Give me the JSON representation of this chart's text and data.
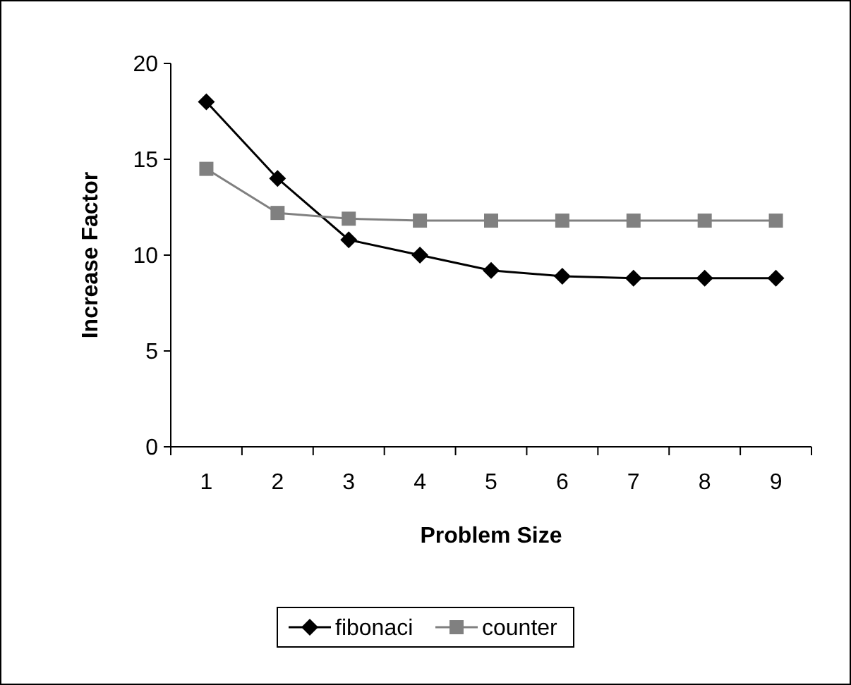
{
  "chart_data": {
    "type": "line",
    "xlabel": "Problem Size",
    "ylabel": "Increase Factor",
    "categories": [
      "1",
      "2",
      "3",
      "4",
      "5",
      "6",
      "7",
      "8",
      "9"
    ],
    "series": [
      {
        "name": "fibonaci",
        "color": "#000000",
        "marker": "diamond",
        "values": [
          18,
          14,
          10.8,
          10,
          9.2,
          8.9,
          8.8,
          8.8,
          8.8
        ]
      },
      {
        "name": "counter",
        "color": "#808080",
        "marker": "square",
        "values": [
          14.5,
          12.2,
          11.9,
          11.8,
          11.8,
          11.8,
          11.8,
          11.8,
          11.8
        ]
      }
    ],
    "ylim": [
      0,
      20
    ],
    "yticks": [
      0,
      5,
      10,
      15,
      20
    ],
    "grid": false,
    "legend": "bottom"
  }
}
